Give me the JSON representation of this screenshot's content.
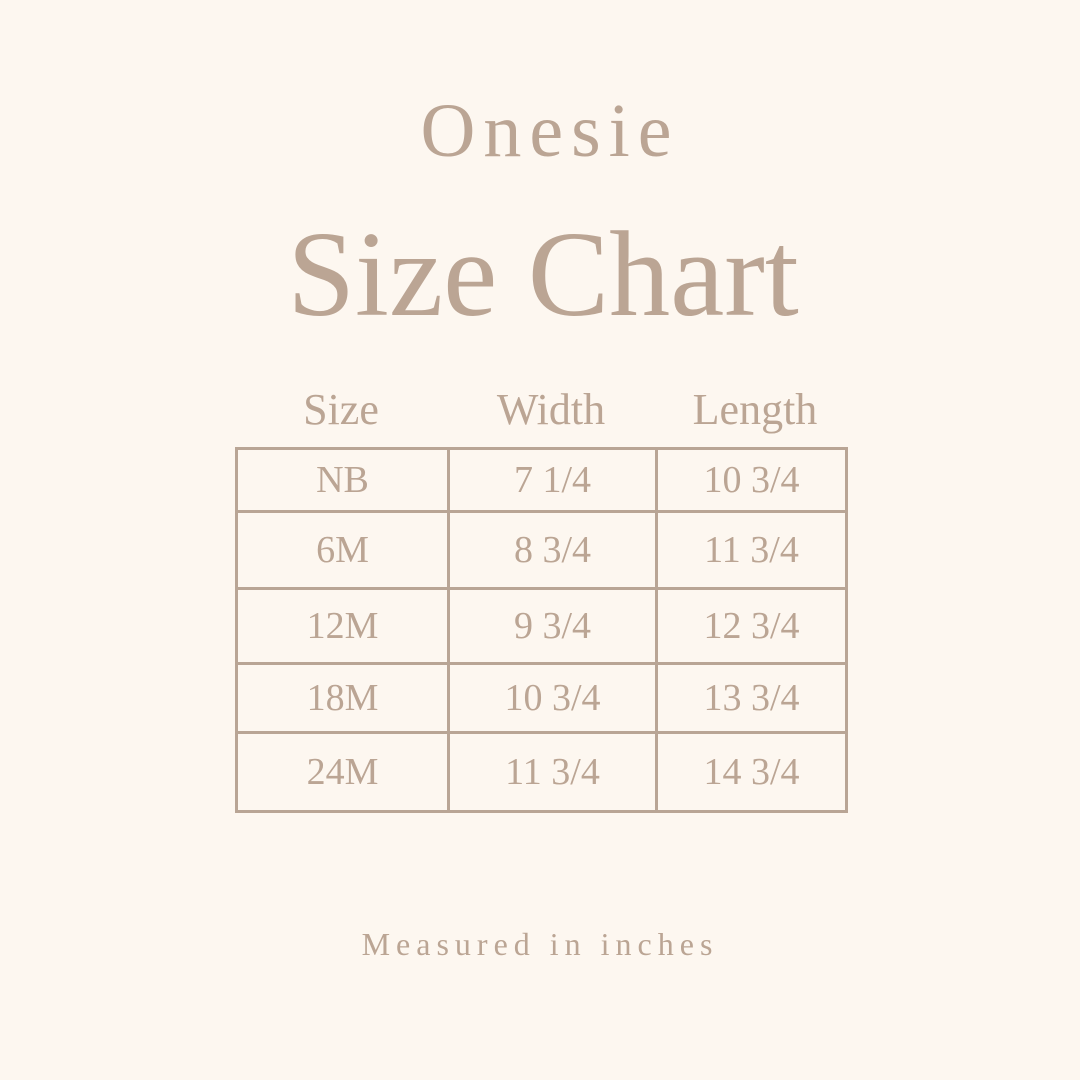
{
  "title_line1": "Onesie",
  "title_line2": "Size Chart",
  "headers": [
    "Size",
    "Width",
    "Length"
  ],
  "rows": [
    [
      "NB",
      "7 1/4",
      "10 3/4"
    ],
    [
      "6M",
      "8 3/4",
      "11 3/4"
    ],
    [
      "12M",
      "9 3/4",
      "12 3/4"
    ],
    [
      "18M",
      "10 3/4",
      "13 3/4"
    ],
    [
      "24M",
      "11 3/4",
      "14 3/4"
    ]
  ],
  "footer": "Measured in inches",
  "colors": {
    "background": "#fdf7f0",
    "text": "#bba594",
    "lines": "#b9a595"
  }
}
